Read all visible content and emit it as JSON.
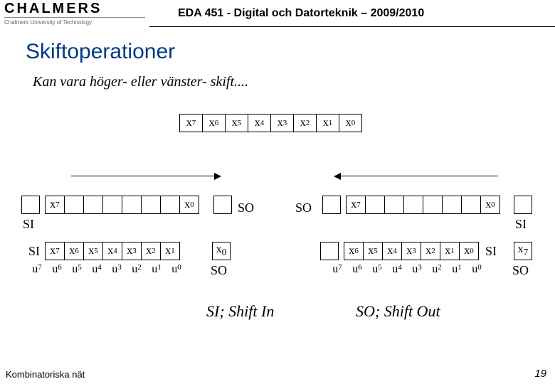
{
  "header": {
    "logo_word": "CHALMERS",
    "logo_sub": "Chalmers University of Technology",
    "course": "EDA 451 - Digital och Datorteknik – 2009/2010"
  },
  "title": "Skiftoperationer",
  "subtitle": "Kan vara höger- eller vänster- skift....",
  "bits": [
    "x",
    "x",
    "x",
    "x",
    "x",
    "x",
    "x",
    "x"
  ],
  "bit_idx": [
    "7",
    "6",
    "5",
    "4",
    "3",
    "2",
    "1",
    "0"
  ],
  "labels": {
    "SI": "SI",
    "SO": "SO",
    "x7": "x",
    "x0": "x",
    "i7": "7",
    "i0": "0"
  },
  "u_idx": [
    "7",
    "6",
    "5",
    "4",
    "3",
    "2",
    "1",
    "0"
  ],
  "shift_in": "SI; Shift In",
  "shift_out": "SO; Shift Out",
  "footer_left": "Kombinatoriska nät",
  "page_no": "19"
}
